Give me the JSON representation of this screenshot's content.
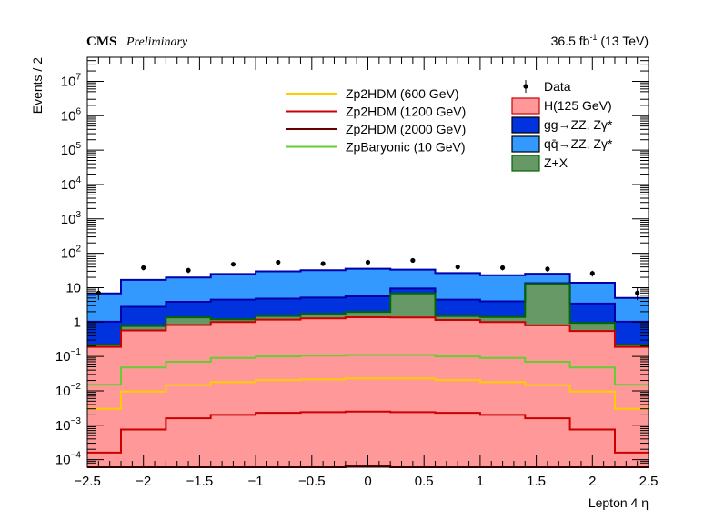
{
  "header": {
    "experiment": "CMS",
    "status": "Preliminary",
    "lumi_value": "36.5 fb",
    "lumi_exp": "-1",
    "energy": " (13 TeV)"
  },
  "colors": {
    "h125_fill": "#ff9999",
    "h125_line": "#cc0000",
    "ggzz_fill": "#0033dd",
    "qqzz_fill": "#3399ff",
    "zx_fill": "#669966",
    "zx_line": "#006600",
    "stack_line": "#0000aa",
    "zp600": "#ffcc00",
    "zp1200": "#cc0000",
    "zp2000": "#660000",
    "zpbaryonic": "#66cc33"
  },
  "chart_data": {
    "type": "area",
    "title": "",
    "xlabel": "Lepton 4 η",
    "ylabel": "Events / 2",
    "xlim": [
      -2.5,
      2.5
    ],
    "ylim": [
      6e-05,
      50000000
    ],
    "yscale": "log",
    "bin_edges": [
      -2.5,
      -2.2,
      -1.8,
      -1.4,
      -1.0,
      -0.6,
      -0.2,
      0.2,
      0.6,
      1.0,
      1.4,
      1.8,
      2.2,
      2.5
    ],
    "x_ticks": [
      -2.5,
      -2,
      -1.5,
      -1,
      -0.5,
      0,
      0.5,
      1,
      1.5,
      2,
      2.5
    ],
    "x_tick_labels": [
      "−2.5",
      "−2",
      "−1.5",
      "−1",
      "−0.5",
      "0",
      "0.5",
      "1",
      "1.5",
      "2",
      "2.5"
    ],
    "y_ticks": [
      {
        "value": 0.0001,
        "base": "10",
        "exp": "−4"
      },
      {
        "value": 0.001,
        "base": "10",
        "exp": "−3"
      },
      {
        "value": 0.01,
        "base": "10",
        "exp": "−2"
      },
      {
        "value": 0.1,
        "base": "10",
        "exp": "−1"
      },
      {
        "value": 1,
        "base": "1",
        "exp": ""
      },
      {
        "value": 10,
        "base": "10",
        "exp": ""
      },
      {
        "value": 100,
        "base": "10",
        "exp": "2"
      },
      {
        "value": 1000,
        "base": "10",
        "exp": "3"
      },
      {
        "value": 10000,
        "base": "10",
        "exp": "4"
      },
      {
        "value": 100000,
        "base": "10",
        "exp": "5"
      },
      {
        "value": 1000000,
        "base": "10",
        "exp": "6"
      },
      {
        "value": 10000000,
        "base": "10",
        "exp": "7"
      }
    ],
    "stack": [
      {
        "name": "H(125 GeV)",
        "fill": "#ff9999",
        "line": "#cc0000",
        "values": [
          0.19,
          0.57,
          0.82,
          1.0,
          1.18,
          1.28,
          1.38,
          1.35,
          1.15,
          1.0,
          0.8,
          0.55,
          0.19
        ]
      },
      {
        "name": "Z+X",
        "fill": "#669966",
        "line": "#006600",
        "values": [
          0.03,
          0.2,
          0.55,
          0.2,
          0.32,
          0.45,
          0.6,
          5.5,
          0.35,
          0.4,
          12.0,
          0.4,
          0.03
        ]
      },
      {
        "name": "gg→ZZ, Zγ*",
        "fill": "#0033dd",
        "line": "#0000aa",
        "values": [
          0.8,
          2.0,
          2.5,
          3.3,
          3.3,
          3.4,
          3.6,
          2.6,
          3.0,
          2.6,
          0.7,
          2.5,
          0.8
        ]
      },
      {
        "name": "qq̄→ZZ, Zγ*",
        "fill": "#3399ff",
        "line": "#0000aa",
        "values": [
          5.8,
          14.0,
          16.0,
          20.5,
          25.0,
          27.0,
          30.0,
          24.0,
          22.0,
          19.0,
          12.0,
          10.5,
          4.0
        ]
      }
    ],
    "signals": [
      {
        "name": "Zp2HDM (600 GeV)",
        "color": "#ffcc00",
        "values": [
          0.003,
          0.0095,
          0.0145,
          0.018,
          0.0205,
          0.0215,
          0.023,
          0.023,
          0.0205,
          0.018,
          0.0145,
          0.0095,
          0.003
        ]
      },
      {
        "name": "Zp2HDM (1200 GeV)",
        "color": "#cc0000",
        "values": [
          0.00016,
          0.00075,
          0.0016,
          0.002,
          0.0023,
          0.0024,
          0.0025,
          0.0024,
          0.0023,
          0.002,
          0.0016,
          0.00075,
          0.00016
        ]
      },
      {
        "name": "Zp2HDM (2000 GeV)",
        "color": "#660000",
        "values": [
          3e-05,
          3e-05,
          4e-05,
          5e-05,
          5.5e-05,
          6e-05,
          6.5e-05,
          6e-05,
          5.5e-05,
          5e-05,
          4e-05,
          3e-05,
          3e-05
        ]
      },
      {
        "name": "ZpBaryonic (10 GeV)",
        "color": "#66cc33",
        "values": [
          0.015,
          0.048,
          0.07,
          0.09,
          0.1,
          0.105,
          0.11,
          0.11,
          0.1,
          0.09,
          0.07,
          0.048,
          0.015
        ]
      }
    ],
    "data": {
      "name": "Data",
      "x": [
        -2.4,
        -2.0,
        -1.6,
        -1.2,
        -0.8,
        -0.4,
        0.0,
        0.4,
        0.8,
        1.2,
        1.6,
        2.0,
        2.4
      ],
      "y": [
        7,
        38,
        32,
        48,
        55,
        50,
        55,
        62,
        40,
        38,
        35,
        26,
        7
      ]
    },
    "legend_right": [
      {
        "label": "Data",
        "kind": "marker",
        "color": "#000000"
      },
      {
        "label": "H(125 GeV)",
        "kind": "box",
        "fill": "#ff9999",
        "line": "#cc0000"
      },
      {
        "label": "gg→ZZ, Zγ*",
        "kind": "box",
        "fill": "#0033dd",
        "line": "#000000"
      },
      {
        "label": "qq̄→ZZ, Zγ*",
        "kind": "box",
        "fill": "#3399ff",
        "line": "#000000"
      },
      {
        "label": "Z+X",
        "kind": "box",
        "fill": "#669966",
        "line": "#006600"
      }
    ],
    "legend_left": [
      {
        "label": "Zp2HDM (600 GeV)",
        "color": "#ffcc00"
      },
      {
        "label": "Zp2HDM (1200 GeV)",
        "color": "#cc0000"
      },
      {
        "label": "Zp2HDM (2000 GeV)",
        "color": "#660000"
      },
      {
        "label": "ZpBaryonic (10 GeV)",
        "color": "#66cc33"
      }
    ]
  }
}
